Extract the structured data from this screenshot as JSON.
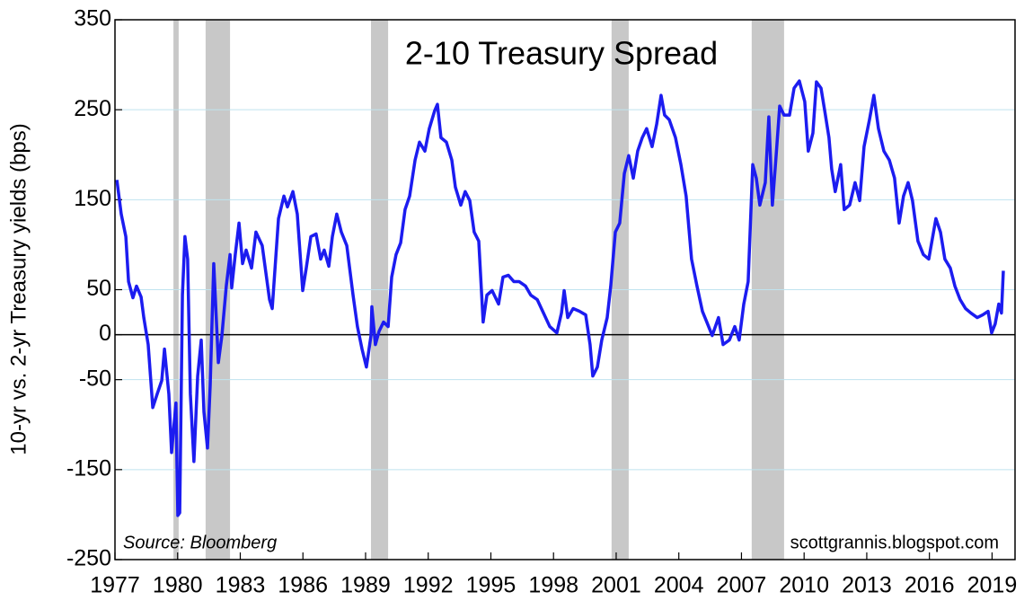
{
  "chart_data": {
    "type": "line",
    "title": "2-10 Treasury Spread",
    "y_label": "10-yr vs. 2-yr Treasury yields (bps)",
    "annotations": [
      "Source: Bloomberg",
      "scottgrannis.blogspot.com"
    ],
    "color": "#1c1cf0",
    "recession_color": "#c8c8c8",
    "grid": true,
    "xlim": [
      1977,
      2020.1
    ],
    "xticks": [
      1977,
      1980,
      1983,
      1986,
      1989,
      1992,
      1995,
      1998,
      2001,
      2004,
      2007,
      2010,
      2013,
      2016,
      2019
    ],
    "ylim": [
      -250,
      350
    ],
    "yticks": [
      350,
      250,
      150,
      50,
      0,
      -50,
      -150,
      -250
    ],
    "recessions": [
      [
        1979.8,
        1980.05
      ],
      [
        1981.34,
        1982.51
      ],
      [
        1989.26,
        1990.08
      ],
      [
        2000.78,
        2001.6
      ],
      [
        2007.49,
        2009.04
      ]
    ],
    "x": [
      1977.09,
      1977.3,
      1977.52,
      1977.65,
      1977.86,
      1978.03,
      1978.25,
      1978.38,
      1978.59,
      1978.81,
      1979.02,
      1979.24,
      1979.37,
      1979.58,
      1979.71,
      1979.92,
      1980.01,
      1980.1,
      1980.23,
      1980.35,
      1980.48,
      1980.61,
      1980.78,
      1980.96,
      1981.13,
      1981.26,
      1981.43,
      1981.56,
      1981.73,
      1981.95,
      1982.12,
      1982.33,
      1982.51,
      1982.59,
      1982.76,
      1982.94,
      1983.11,
      1983.28,
      1983.54,
      1983.75,
      1984.05,
      1984.4,
      1984.53,
      1984.83,
      1985.09,
      1985.26,
      1985.52,
      1985.73,
      1985.99,
      1986.16,
      1986.38,
      1986.63,
      1986.85,
      1987.02,
      1987.24,
      1987.41,
      1987.62,
      1987.84,
      1988.1,
      1988.4,
      1988.61,
      1988.83,
      1989.04,
      1989.26,
      1989.3,
      1989.47,
      1989.65,
      1989.86,
      1990.08,
      1990.25,
      1990.46,
      1990.68,
      1990.89,
      1991.11,
      1991.37,
      1991.58,
      1991.84,
      1992.05,
      1992.31,
      1992.44,
      1992.61,
      1992.87,
      1993.13,
      1993.3,
      1993.56,
      1993.77,
      1993.99,
      1994.2,
      1994.42,
      1994.63,
      1994.81,
      1995.06,
      1995.37,
      1995.58,
      1995.84,
      1996.1,
      1996.35,
      1996.66,
      1996.91,
      1997.22,
      1997.52,
      1997.82,
      1998.16,
      1998.38,
      1998.51,
      1998.68,
      1998.94,
      1999.24,
      1999.54,
      1999.75,
      1999.88,
      2000.1,
      2000.31,
      2000.57,
      2000.74,
      2000.96,
      2001.17,
      2001.39,
      2001.6,
      2001.82,
      2002.03,
      2002.25,
      2002.46,
      2002.72,
      2002.94,
      2003.15,
      2003.32,
      2003.54,
      2003.84,
      2004.1,
      2004.35,
      2004.61,
      2004.87,
      2005.13,
      2005.34,
      2005.6,
      2005.9,
      2006.12,
      2006.42,
      2006.68,
      2006.89,
      2007.11,
      2007.32,
      2007.54,
      2007.71,
      2007.88,
      2008.14,
      2008.31,
      2008.48,
      2008.66,
      2008.83,
      2009.04,
      2009.3,
      2009.52,
      2009.77,
      2010.03,
      2010.2,
      2010.42,
      2010.59,
      2010.81,
      2011.02,
      2011.19,
      2011.32,
      2011.49,
      2011.75,
      2011.92,
      2012.18,
      2012.44,
      2012.66,
      2012.87,
      2013.13,
      2013.34,
      2013.56,
      2013.82,
      2014.08,
      2014.33,
      2014.55,
      2014.76,
      2014.98,
      2015.19,
      2015.45,
      2015.71,
      2015.97,
      2016.31,
      2016.53,
      2016.74,
      2017.0,
      2017.22,
      2017.47,
      2017.73,
      2017.99,
      2018.29,
      2018.55,
      2018.81,
      2018.98,
      2019.15,
      2019.32,
      2019.45,
      2019.54
    ],
    "values": [
      172,
      134,
      109,
      59,
      41,
      54,
      42,
      19,
      -11,
      -81,
      -66,
      -51,
      -16,
      -66,
      -131,
      -76,
      -201,
      -198,
      44,
      109,
      84,
      -66,
      -141,
      -46,
      -6,
      -86,
      -126,
      -56,
      79,
      -31,
      -1,
      54,
      89,
      52,
      89,
      124,
      79,
      94,
      74,
      114,
      99,
      39,
      29,
      129,
      154,
      142,
      159,
      134,
      49,
      74,
      109,
      112,
      84,
      94,
      76,
      109,
      134,
      114,
      99,
      44,
      9,
      -16,
      -36,
      -1,
      31,
      -11,
      4,
      14,
      9,
      64,
      89,
      102,
      139,
      154,
      194,
      214,
      204,
      229,
      249,
      256,
      219,
      214,
      194,
      164,
      144,
      159,
      149,
      114,
      104,
      14,
      44,
      49,
      34,
      64,
      66,
      59,
      59,
      54,
      44,
      39,
      24,
      9,
      2,
      24,
      49,
      19,
      29,
      26,
      22,
      -11,
      -46,
      -36,
      -6,
      19,
      54,
      114,
      124,
      179,
      199,
      174,
      204,
      219,
      229,
      209,
      234,
      266,
      244,
      239,
      219,
      189,
      154,
      84,
      54,
      26,
      14,
      -1,
      19,
      -11,
      -6,
      9,
      -6,
      34,
      59,
      189,
      174,
      144,
      169,
      242,
      144,
      199,
      254,
      244,
      244,
      274,
      282,
      259,
      204,
      224,
      281,
      274,
      244,
      219,
      184,
      159,
      189,
      139,
      144,
      169,
      149,
      209,
      239,
      266,
      229,
      204,
      194,
      174,
      124,
      154,
      169,
      149,
      104,
      89,
      84,
      129,
      114,
      84,
      74,
      54,
      39,
      29,
      24,
      19,
      22,
      26,
      2,
      12,
      34,
      24,
      71
    ]
  }
}
